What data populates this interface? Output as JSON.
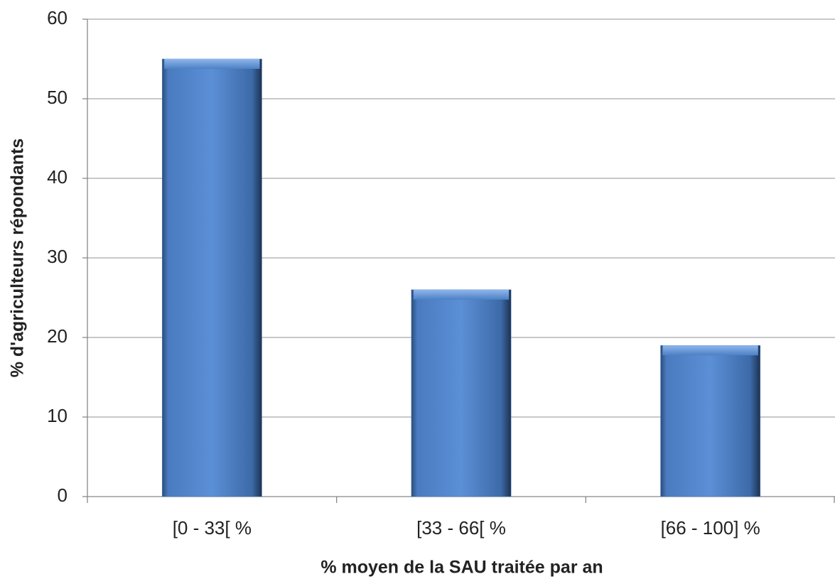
{
  "chart_data": {
    "type": "bar",
    "xlabel": "% moyen de la SAU traitée par an",
    "ylabel": "% d'agriculteurs répondants",
    "categories": [
      "[0 - 33[ %",
      "[33 - 66[ %",
      "[66 - 100] %"
    ],
    "values": [
      55,
      26,
      19
    ],
    "color": "#4f81bd",
    "ylim": [
      0,
      60
    ],
    "yticks": [
      0,
      10,
      20,
      30,
      40,
      50,
      60
    ],
    "grid": true
  }
}
